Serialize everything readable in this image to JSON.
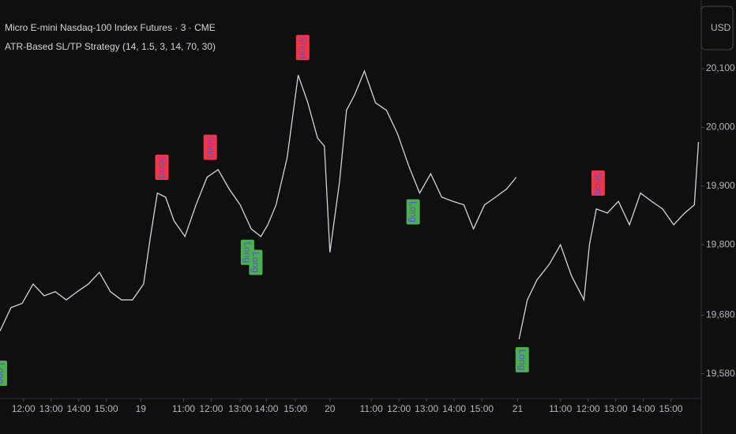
{
  "chart_data": {
    "type": "line",
    "title": "Micro E-mini Nasdaq-100 Index Futures · 3 · CME",
    "subtitle": "ATR-Based SL/TP Strategy (14, 1.5, 3, 14, 70, 30)",
    "currency": "USD",
    "color": "#d1d4dc",
    "background": "#0f0f0f",
    "x": [
      0,
      8,
      16,
      24,
      32,
      40,
      48,
      56,
      64,
      72,
      80,
      88,
      96,
      104,
      109,
      114,
      120,
      126,
      134,
      142,
      150,
      158,
      166,
      174,
      182,
      189,
      194,
      200,
      208,
      216,
      223,
      230,
      235,
      239,
      246,
      251,
      257,
      264,
      272,
      280,
      288,
      296,
      304,
      312,
      320,
      328,
      336,
      343,
      351,
      359,
      367,
      374,
      375,
      376,
      382,
      389,
      398,
      406,
      414,
      423,
      427,
      432,
      440,
      448,
      456,
      464,
      472,
      480,
      488,
      496,
      503,
      506
    ],
    "values": [
      19653,
      19693,
      19700,
      19733,
      19713,
      19720,
      19706,
      19720,
      19733,
      19753,
      19720,
      19706,
      19706,
      19733,
      19814,
      19888,
      19881,
      19841,
      19814,
      19868,
      19915,
      19928,
      19895,
      19868,
      19827,
      19814,
      19834,
      19868,
      19948,
      20089,
      20042,
      19982,
      19968,
      19787,
      19908,
      20029,
      20056,
      20096,
      20042,
      20029,
      19989,
      19935,
      19888,
      19921,
      19881,
      19874,
      19868,
      19827,
      19868,
      19881,
      19895,
      19915,
      null,
      19639,
      19706,
      19740,
      19767,
      19800,
      19747,
      19706,
      19800,
      19861,
      19854,
      19874,
      19834,
      19888,
      19874,
      19861,
      19834,
      19854,
      19868,
      19975
    ],
    "xlim": [
      0,
      508
    ],
    "ylim": [
      19538,
      20217
    ],
    "xticks": [
      {
        "value": 17,
        "label": "12:00"
      },
      {
        "value": 37,
        "label": "13:00"
      },
      {
        "value": 57,
        "label": "14:00"
      },
      {
        "value": 77,
        "label": "15:00"
      },
      {
        "value": 102,
        "label": "19"
      },
      {
        "value": 133,
        "label": "11:00"
      },
      {
        "value": 153,
        "label": "12:00"
      },
      {
        "value": 174,
        "label": "13:00"
      },
      {
        "value": 193,
        "label": "14:00"
      },
      {
        "value": 214,
        "label": "15:00"
      },
      {
        "value": 239,
        "label": "20"
      },
      {
        "value": 269,
        "label": "11:00"
      },
      {
        "value": 289,
        "label": "12:00"
      },
      {
        "value": 309,
        "label": "13:00"
      },
      {
        "value": 329,
        "label": "14:00"
      },
      {
        "value": 349,
        "label": "15:00"
      },
      {
        "value": 375,
        "label": "21"
      },
      {
        "value": 406,
        "label": "11:00"
      },
      {
        "value": 426,
        "label": "12:00"
      },
      {
        "value": 446,
        "label": "13:00"
      },
      {
        "value": 466,
        "label": "14:00"
      },
      {
        "value": 486,
        "label": "15:00"
      }
    ],
    "yticks": [
      {
        "value": 19580,
        "label": "19,580.00"
      },
      {
        "value": 19680,
        "label": "19,680.00"
      },
      {
        "value": 19800,
        "label": "19,800.00"
      },
      {
        "value": 19900,
        "label": "19,900.00"
      },
      {
        "value": 20000,
        "label": "20,000.00"
      },
      {
        "value": 20100,
        "label": "20,100.00"
      }
    ],
    "annotations": [
      {
        "text": "Long",
        "x": 0,
        "y": 19581,
        "color": "#4caf50"
      },
      {
        "text": "Short",
        "x": 117,
        "y": 19932,
        "color": "#f23645"
      },
      {
        "text": "Short",
        "x": 152,
        "y": 19966,
        "color": "#f23645"
      },
      {
        "text": "Long",
        "x": 179,
        "y": 19787,
        "color": "#4caf50"
      },
      {
        "text": "Long",
        "x": 185,
        "y": 19770,
        "color": "#4caf50"
      },
      {
        "text": "Short",
        "x": 219,
        "y": 20136,
        "color": "#f23645"
      },
      {
        "text": "Long",
        "x": 299,
        "y": 19856,
        "color": "#4caf50"
      },
      {
        "text": "Long",
        "x": 378,
        "y": 19604,
        "color": "#4caf50"
      },
      {
        "text": "Short",
        "x": 433,
        "y": 19905,
        "color": "#f23645"
      }
    ]
  }
}
